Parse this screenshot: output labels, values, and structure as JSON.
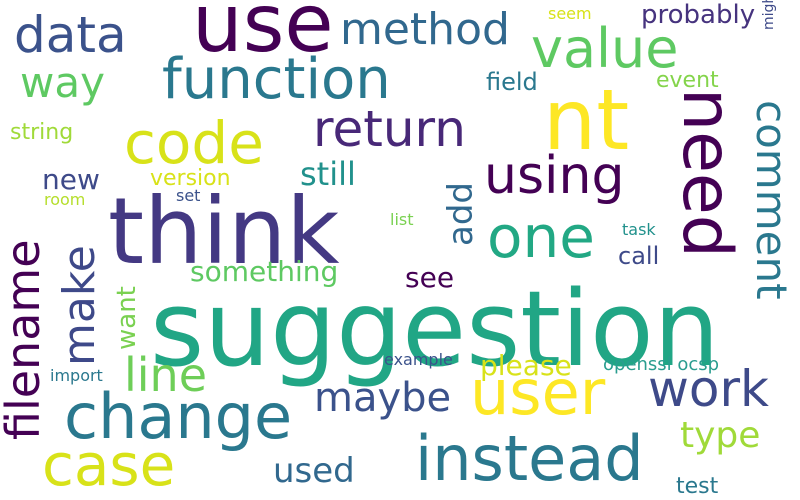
{
  "words": [
    {
      "text": "suggestion",
      "color": "#21a685"
    },
    {
      "text": "think",
      "color": "#443983"
    },
    {
      "text": "use",
      "color": "#440154"
    },
    {
      "text": "nt",
      "color": "#fde725"
    },
    {
      "text": "need",
      "color": "#440154"
    },
    {
      "text": "user",
      "color": "#fde725"
    },
    {
      "text": "change",
      "color": "#2a788e"
    },
    {
      "text": "instead",
      "color": "#2a788e"
    },
    {
      "text": "case",
      "color": "#d8e219"
    },
    {
      "text": "function",
      "color": "#2a788e"
    },
    {
      "text": "code",
      "color": "#d8e219"
    },
    {
      "text": "one",
      "color": "#22a884"
    },
    {
      "text": "value",
      "color": "#5ec962"
    },
    {
      "text": "data",
      "color": "#3b528b"
    },
    {
      "text": "using",
      "color": "#440154"
    },
    {
      "text": "return",
      "color": "#482878"
    },
    {
      "text": "method",
      "color": "#31688e"
    },
    {
      "text": "work",
      "color": "#3e4a89"
    },
    {
      "text": "comment",
      "color": "#2a788e"
    },
    {
      "text": "line",
      "color": "#6ece58"
    },
    {
      "text": "filename",
      "color": "#440154"
    },
    {
      "text": "make",
      "color": "#3e4989"
    },
    {
      "text": "way",
      "color": "#5ec962"
    },
    {
      "text": "maybe",
      "color": "#3b528b"
    },
    {
      "text": "type",
      "color": "#a0da39"
    },
    {
      "text": "used",
      "color": "#31688e"
    },
    {
      "text": "add",
      "color": "#31688e"
    },
    {
      "text": "still",
      "color": "#21918c"
    },
    {
      "text": "something",
      "color": "#5ec962"
    },
    {
      "text": "want",
      "color": "#7ad151"
    },
    {
      "text": "please",
      "color": "#d8e219"
    },
    {
      "text": "probably",
      "color": "#46337e"
    },
    {
      "text": "new",
      "color": "#3e4a89"
    },
    {
      "text": "see",
      "color": "#440154"
    },
    {
      "text": "call",
      "color": "#3e4a89"
    },
    {
      "text": "field",
      "color": "#2a788e"
    },
    {
      "text": "event",
      "color": "#84d44b"
    },
    {
      "text": "string",
      "color": "#a0da39"
    },
    {
      "text": "version",
      "color": "#d8e219"
    },
    {
      "text": "test",
      "color": "#2a788e"
    },
    {
      "text": "openssl ocsp",
      "color": "#2a9d8f"
    },
    {
      "text": "example",
      "color": "#3b528b"
    },
    {
      "text": "import",
      "color": "#2a788e"
    },
    {
      "text": "seem",
      "color": "#d8e219"
    },
    {
      "text": "might",
      "color": "#3e4a89"
    },
    {
      "text": "room",
      "color": "#b5de2b"
    },
    {
      "text": "set",
      "color": "#3b528b"
    },
    {
      "text": "list",
      "color": "#7ad151"
    },
    {
      "text": "task",
      "color": "#21918c"
    }
  ]
}
